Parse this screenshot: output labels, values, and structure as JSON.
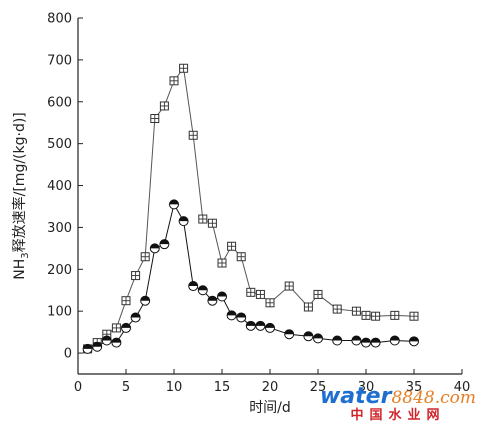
{
  "chart_data": {
    "type": "line",
    "xlabel": "时间/d",
    "ylabel": "NH3释放速率/[mg/(kg·d)]",
    "ylabel_main": "NH",
    "ylabel_sub": "3",
    "ylabel_rest": "释放速率/[mg/(kg·d)]",
    "xlim": [
      0,
      40
    ],
    "ylim": [
      -50,
      800
    ],
    "xticks": [
      0,
      5,
      10,
      15,
      20,
      25,
      30,
      35,
      40
    ],
    "yticks": [
      0,
      100,
      200,
      300,
      400,
      500,
      600,
      700,
      800
    ],
    "grid": false,
    "series": [
      {
        "marker": "boxed-plus",
        "color": "#555555",
        "points": [
          [
            1,
            10
          ],
          [
            2,
            25
          ],
          [
            3,
            45
          ],
          [
            4,
            60
          ],
          [
            5,
            125
          ],
          [
            6,
            185
          ],
          [
            7,
            230
          ],
          [
            8,
            560
          ],
          [
            9,
            590
          ],
          [
            10,
            650
          ],
          [
            11,
            680
          ],
          [
            12,
            520
          ],
          [
            13,
            320
          ],
          [
            14,
            310
          ],
          [
            15,
            215
          ],
          [
            16,
            255
          ],
          [
            17,
            230
          ],
          [
            18,
            145
          ],
          [
            19,
            140
          ],
          [
            20,
            120
          ],
          [
            22,
            160
          ],
          [
            24,
            110
          ],
          [
            25,
            140
          ],
          [
            27,
            105
          ],
          [
            29,
            100
          ],
          [
            30,
            90
          ],
          [
            31,
            88
          ],
          [
            33,
            90
          ],
          [
            35,
            88
          ]
        ]
      },
      {
        "marker": "half-filled-circle",
        "color": "#111111",
        "points": [
          [
            1,
            10
          ],
          [
            2,
            15
          ],
          [
            3,
            30
          ],
          [
            4,
            25
          ],
          [
            5,
            60
          ],
          [
            6,
            85
          ],
          [
            7,
            125
          ],
          [
            8,
            250
          ],
          [
            9,
            260
          ],
          [
            10,
            355
          ],
          [
            11,
            315
          ],
          [
            12,
            160
          ],
          [
            13,
            150
          ],
          [
            14,
            125
          ],
          [
            15,
            135
          ],
          [
            16,
            90
          ],
          [
            17,
            85
          ],
          [
            18,
            65
          ],
          [
            19,
            65
          ],
          [
            20,
            60
          ],
          [
            22,
            45
          ],
          [
            24,
            40
          ],
          [
            25,
            35
          ],
          [
            27,
            30
          ],
          [
            29,
            30
          ],
          [
            30,
            25
          ],
          [
            31,
            25
          ],
          [
            33,
            30
          ],
          [
            35,
            28
          ]
        ]
      }
    ]
  },
  "watermark": {
    "brand_text": "water",
    "brand_number": "8848",
    "brand_suffix": ".com",
    "subtitle": "中国水业网"
  }
}
